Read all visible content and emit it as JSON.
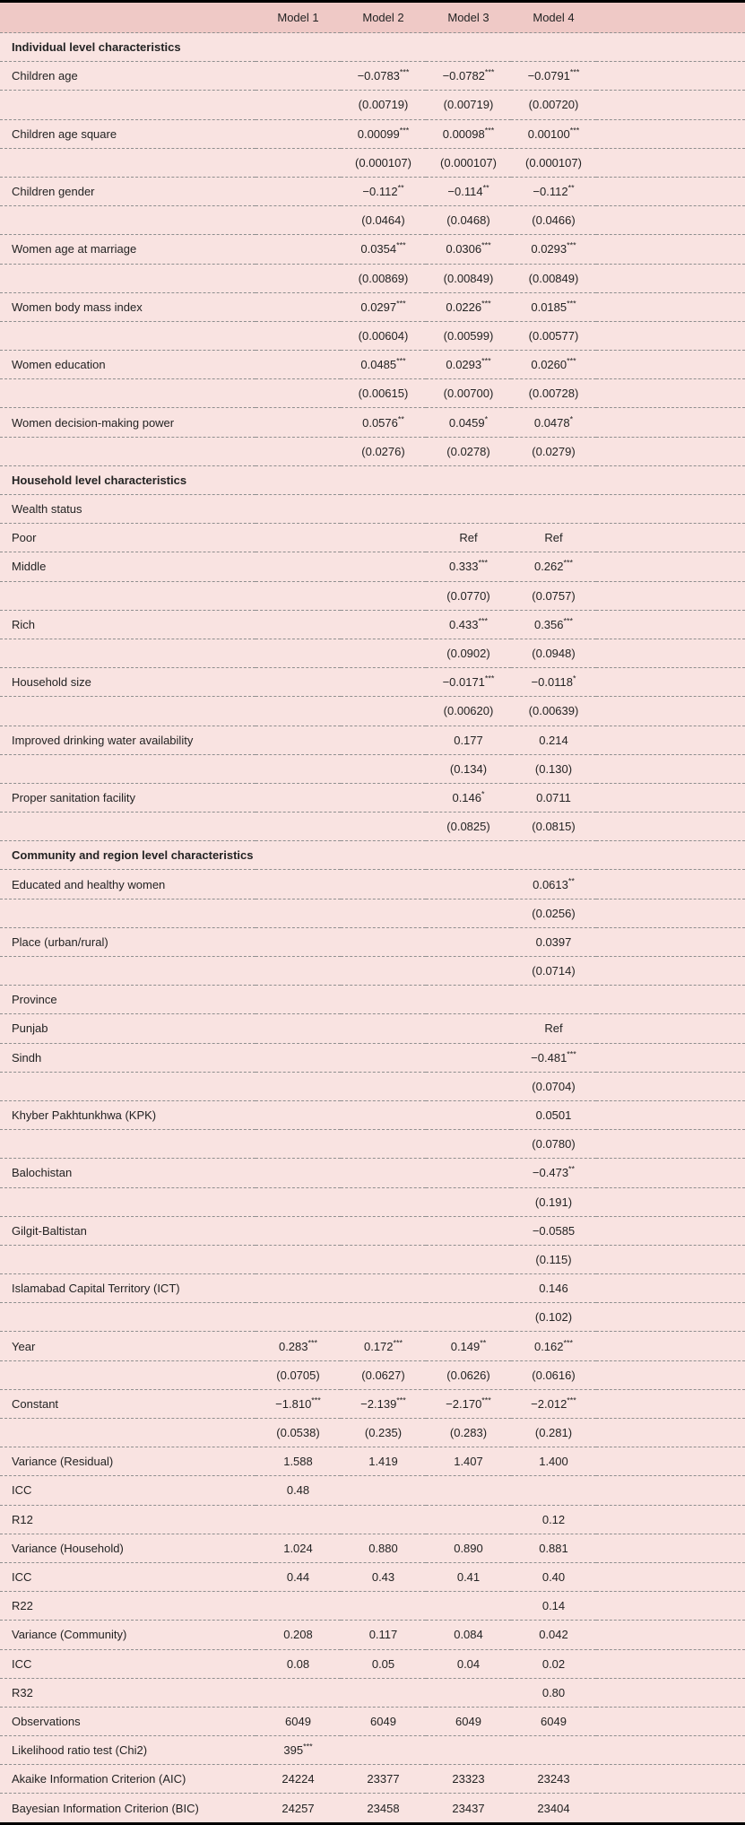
{
  "table": {
    "columns": [
      "Model 1",
      "Model 2",
      "Model 3",
      "Model 4"
    ],
    "colors": {
      "body_background": "#f9e3e1",
      "header_background": "#efc9c6",
      "rule_color": "#000000",
      "divider_color": "#8f8f8f",
      "text_color": "#232323"
    },
    "rows": [
      {
        "type": "section",
        "label": "Individual level characteristics",
        "values": [
          "",
          "",
          "",
          ""
        ]
      },
      {
        "type": "coef",
        "label": "Children age",
        "values": [
          "",
          "−0.0783***",
          "−0.0782***",
          "−0.0791***"
        ]
      },
      {
        "type": "se",
        "label": "",
        "values": [
          "",
          "(0.00719)",
          "(0.00719)",
          "(0.00720)"
        ]
      },
      {
        "type": "coef",
        "label": "Children age square",
        "values": [
          "",
          "0.00099***",
          "0.00098***",
          "0.00100***"
        ]
      },
      {
        "type": "se",
        "label": "",
        "values": [
          "",
          "(0.000107)",
          "(0.000107)",
          "(0.000107)"
        ]
      },
      {
        "type": "coef",
        "label": "Children gender",
        "values": [
          "",
          "−0.112**",
          "−0.114**",
          "−0.112**"
        ]
      },
      {
        "type": "se",
        "label": "",
        "values": [
          "",
          "(0.0464)",
          "(0.0468)",
          "(0.0466)"
        ]
      },
      {
        "type": "coef",
        "label": "Women age at marriage",
        "values": [
          "",
          "0.0354***",
          "0.0306***",
          "0.0293***"
        ]
      },
      {
        "type": "se",
        "label": "",
        "values": [
          "",
          "(0.00869)",
          "(0.00849)",
          "(0.00849)"
        ]
      },
      {
        "type": "coef",
        "label": "Women body mass index",
        "values": [
          "",
          "0.0297***",
          "0.0226***",
          "0.0185***"
        ]
      },
      {
        "type": "se",
        "label": "",
        "values": [
          "",
          "(0.00604)",
          "(0.00599)",
          "(0.00577)"
        ]
      },
      {
        "type": "coef",
        "label": "Women education",
        "values": [
          "",
          "0.0485***",
          "0.0293***",
          "0.0260***"
        ]
      },
      {
        "type": "se",
        "label": "",
        "values": [
          "",
          "(0.00615)",
          "(0.00700)",
          "(0.00728)"
        ]
      },
      {
        "type": "coef",
        "label": "Women decision-making power",
        "values": [
          "",
          "0.0576**",
          "0.0459*",
          "0.0478*"
        ]
      },
      {
        "type": "se",
        "label": "",
        "values": [
          "",
          "(0.0276)",
          "(0.0278)",
          "(0.0279)"
        ]
      },
      {
        "type": "section",
        "label": "Household level characteristics",
        "values": [
          "",
          "",
          "",
          ""
        ]
      },
      {
        "type": "coef",
        "label": "Wealth status",
        "values": [
          "",
          "",
          "",
          ""
        ]
      },
      {
        "type": "coef",
        "label": "Poor",
        "values": [
          "",
          "",
          "Ref",
          "Ref"
        ]
      },
      {
        "type": "coef",
        "label": "Middle",
        "values": [
          "",
          "",
          "0.333***",
          "0.262***"
        ]
      },
      {
        "type": "se",
        "label": "",
        "values": [
          "",
          "",
          "(0.0770)",
          "(0.0757)"
        ]
      },
      {
        "type": "coef",
        "label": "Rich",
        "values": [
          "",
          "",
          "0.433***",
          "0.356***"
        ]
      },
      {
        "type": "se",
        "label": "",
        "values": [
          "",
          "",
          "(0.0902)",
          "(0.0948)"
        ]
      },
      {
        "type": "coef",
        "label": "Household size",
        "values": [
          "",
          "",
          "−0.0171***",
          "−0.0118*"
        ]
      },
      {
        "type": "se",
        "label": "",
        "values": [
          "",
          "",
          "(0.00620)",
          "(0.00639)"
        ]
      },
      {
        "type": "coef",
        "label": "Improved drinking water availability",
        "values": [
          "",
          "",
          "0.177",
          "0.214"
        ]
      },
      {
        "type": "se",
        "label": "",
        "values": [
          "",
          "",
          "(0.134)",
          "(0.130)"
        ]
      },
      {
        "type": "coef",
        "label": "Proper sanitation facility",
        "values": [
          "",
          "",
          "0.146*",
          "0.0711"
        ]
      },
      {
        "type": "se",
        "label": "",
        "values": [
          "",
          "",
          "(0.0825)",
          "(0.0815)"
        ]
      },
      {
        "type": "section",
        "label": "Community and region level characteristics",
        "values": [
          "",
          "",
          "",
          ""
        ]
      },
      {
        "type": "coef",
        "label": "Educated and healthy women",
        "values": [
          "",
          "",
          "",
          "0.0613**"
        ]
      },
      {
        "type": "se",
        "label": "",
        "values": [
          "",
          "",
          "",
          "(0.0256)"
        ]
      },
      {
        "type": "coef",
        "label": "Place (urban/rural)",
        "values": [
          "",
          "",
          "",
          "0.0397"
        ]
      },
      {
        "type": "se",
        "label": "",
        "values": [
          "",
          "",
          "",
          "(0.0714)"
        ]
      },
      {
        "type": "coef",
        "label": "Province",
        "values": [
          "",
          "",
          "",
          ""
        ]
      },
      {
        "type": "coef",
        "label": "Punjab",
        "values": [
          "",
          "",
          "",
          "Ref"
        ]
      },
      {
        "type": "coef",
        "label": "Sindh",
        "values": [
          "",
          "",
          "",
          "−0.481***"
        ]
      },
      {
        "type": "se",
        "label": "",
        "values": [
          "",
          "",
          "",
          "(0.0704)"
        ]
      },
      {
        "type": "coef",
        "label": "Khyber Pakhtunkhwa (KPK)",
        "values": [
          "",
          "",
          "",
          "0.0501"
        ]
      },
      {
        "type": "se",
        "label": "",
        "values": [
          "",
          "",
          "",
          "(0.0780)"
        ]
      },
      {
        "type": "coef",
        "label": "Balochistan",
        "values": [
          "",
          "",
          "",
          "−0.473**"
        ]
      },
      {
        "type": "se",
        "label": "",
        "values": [
          "",
          "",
          "",
          "(0.191)"
        ]
      },
      {
        "type": "coef",
        "label": "Gilgit-Baltistan",
        "values": [
          "",
          "",
          "",
          "−0.0585"
        ]
      },
      {
        "type": "se",
        "label": "",
        "values": [
          "",
          "",
          "",
          "(0.115)"
        ]
      },
      {
        "type": "coef",
        "label": "Islamabad Capital Territory (ICT)",
        "values": [
          "",
          "",
          "",
          "0.146"
        ]
      },
      {
        "type": "se",
        "label": "",
        "values": [
          "",
          "",
          "",
          "(0.102)"
        ]
      },
      {
        "type": "coef",
        "label": "Year",
        "values": [
          "0.283***",
          "0.172***",
          "0.149**",
          "0.162***"
        ]
      },
      {
        "type": "se",
        "label": "",
        "values": [
          "(0.0705)",
          "(0.0627)",
          "(0.0626)",
          "(0.0616)"
        ]
      },
      {
        "type": "coef",
        "label": "Constant",
        "values": [
          "−1.810***",
          "−2.139***",
          "−2.170***",
          "−2.012***"
        ]
      },
      {
        "type": "se",
        "label": "",
        "values": [
          "(0.0538)",
          "(0.235)",
          "(0.283)",
          "(0.281)"
        ]
      },
      {
        "type": "coef",
        "label": "Variance (Residual)",
        "values": [
          "1.588",
          "1.419",
          "1.407",
          "1.400"
        ]
      },
      {
        "type": "coef",
        "label": "ICC",
        "values": [
          "0.48",
          "",
          "",
          ""
        ]
      },
      {
        "type": "coef",
        "label": "R12",
        "values": [
          "",
          "",
          "",
          "0.12"
        ]
      },
      {
        "type": "coef",
        "label": "Variance (Household)",
        "values": [
          "1.024",
          "0.880",
          "0.890",
          "0.881"
        ]
      },
      {
        "type": "coef",
        "label": "ICC",
        "values": [
          "0.44",
          "0.43",
          "0.41",
          "0.40"
        ]
      },
      {
        "type": "coef",
        "label": "R22",
        "values": [
          "",
          "",
          "",
          "0.14"
        ]
      },
      {
        "type": "coef",
        "label": "Variance (Community)",
        "values": [
          "0.208",
          "0.117",
          "0.084",
          "0.042"
        ]
      },
      {
        "type": "coef",
        "label": "ICC",
        "values": [
          "0.08",
          "0.05",
          "0.04",
          "0.02"
        ]
      },
      {
        "type": "coef",
        "label": "R32",
        "values": [
          "",
          "",
          "",
          "0.80"
        ]
      },
      {
        "type": "coef",
        "label": "Observations",
        "values": [
          "6049",
          "6049",
          "6049",
          "6049"
        ]
      },
      {
        "type": "coef",
        "label": "Likelihood ratio test (Chi2)",
        "values": [
          "395***",
          "",
          "",
          ""
        ]
      },
      {
        "type": "coef",
        "label": "Akaike Information Criterion (AIC)",
        "values": [
          "24224",
          "23377",
          "23323",
          "23243"
        ]
      },
      {
        "type": "coef",
        "label": "Bayesian Information Criterion (BIC)",
        "values": [
          "24257",
          "23458",
          "23437",
          "23404"
        ]
      }
    ]
  }
}
